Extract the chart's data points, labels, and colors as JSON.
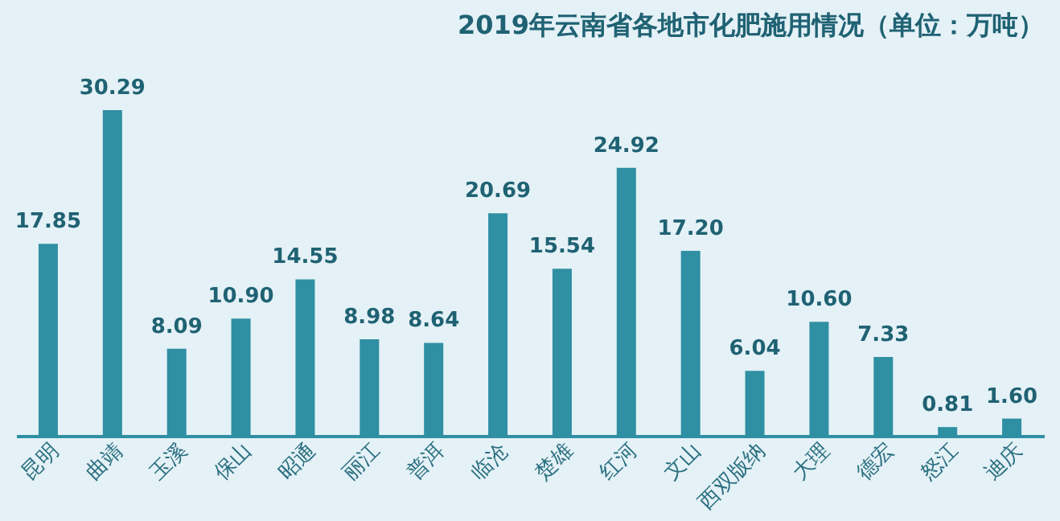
{
  "chart_data": {
    "type": "bar",
    "title": "2019年云南省各地市化肥施用情况（单位：万吨）",
    "categories": [
      "昆明",
      "曲靖",
      "玉溪",
      "保山",
      "昭通",
      "丽江",
      "普洱",
      "临沧",
      "楚雄",
      "红河",
      "文山",
      "西双版纳",
      "大理",
      "德宏",
      "怒江",
      "迪庆"
    ],
    "values": [
      17.85,
      30.29,
      8.09,
      10.9,
      14.55,
      8.98,
      8.64,
      20.69,
      15.54,
      24.92,
      17.2,
      6.04,
      10.6,
      7.33,
      0.81,
      1.6
    ],
    "value_labels": [
      "17.85",
      "30.29",
      "8.09",
      "10.90",
      "14.55",
      "8.98",
      "8.64",
      "20.69",
      "15.54",
      "24.92",
      "17.20",
      "6.04",
      "10.60",
      "7.33",
      "0.81",
      "1.60"
    ],
    "color": "#2f8fa3",
    "grid": false
  }
}
